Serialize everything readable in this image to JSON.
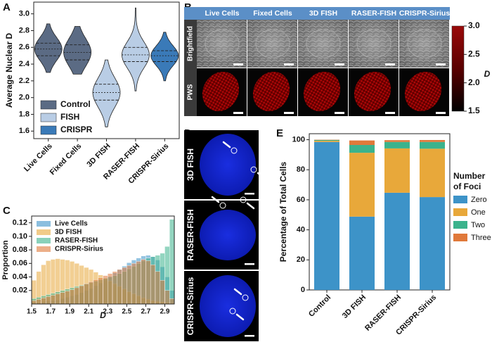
{
  "panel_labels": [
    "A",
    "B",
    "C",
    "D",
    "E"
  ],
  "panel_b": {
    "columns": [
      "Live Cells",
      "Fixed Cells",
      "3D FISH",
      "RASER-FISH",
      "CRISPR-Sirius"
    ],
    "rows": [
      "Brightfield",
      "PWS"
    ],
    "colorbar": {
      "label": "D",
      "lim": [
        1.5,
        3.0
      ],
      "ticks": [
        1.5,
        {
          "value": 2,
          "label": "2.0"
        },
        2.5,
        {
          "value": 3,
          "label": "3.0"
        }
      ]
    }
  },
  "panel_d": {
    "rows": [
      "3D FISH",
      "RASER-FISH",
      "CRISPR-Sirius"
    ]
  },
  "chart_data": [
    {
      "type": "violin",
      "ylabel": "Average Nuclear D",
      "categories": [
        "Live Cells",
        "Fixed Cells",
        "3D FISH",
        "RASER-FISH",
        "CRISPR-Sirius"
      ],
      "colors": [
        "#5b6b84",
        "#5b6b84",
        "#b9cde5",
        "#b9cde5",
        "#3a7ab8"
      ],
      "min": [
        2.3,
        2.28,
        1.65,
        2.08,
        2.2
      ],
      "q1": [
        2.5,
        2.45,
        1.97,
        2.43,
        2.43
      ],
      "median": [
        2.58,
        2.54,
        2.06,
        2.51,
        2.5
      ],
      "q3": [
        2.65,
        2.63,
        2.16,
        2.6,
        2.56
      ],
      "max": [
        2.88,
        2.85,
        2.45,
        3.07,
        2.78
      ],
      "ylim": [
        1.51,
        3.14
      ],
      "yticks": [
        1.6,
        1.8,
        {
          "value": 2,
          "label": "2.0"
        },
        2.2,
        2.4,
        2.6,
        2.8,
        {
          "value": 3,
          "label": "3.0"
        }
      ],
      "legend": [
        {
          "name": "Control",
          "color": "#5b6b84"
        },
        {
          "name": "FISH",
          "color": "#b9cde5"
        },
        {
          "name": "CRISPR",
          "color": "#3a7ab8"
        }
      ],
      "legend_position": "lower left"
    },
    {
      "type": "histogram",
      "xlabel": "D",
      "ylabel": "Proportion",
      "bins": [
        1.5,
        1.55,
        1.6,
        1.65,
        1.7,
        1.75,
        1.8,
        1.85,
        1.9,
        1.95,
        2.0,
        2.05,
        2.1,
        2.15,
        2.2,
        2.25,
        2.3,
        2.35,
        2.4,
        2.45,
        2.5,
        2.55,
        2.6,
        2.65,
        2.7,
        2.75,
        2.8,
        2.85,
        2.9,
        2.95,
        3.0
      ],
      "series": [
        {
          "name": "Live Cells",
          "color": "#3d93c8",
          "values": [
            0.001,
            0.002,
            0.003,
            0.004,
            0.005,
            0.006,
            0.008,
            0.01,
            0.012,
            0.014,
            0.017,
            0.02,
            0.023,
            0.027,
            0.031,
            0.036,
            0.041,
            0.046,
            0.051,
            0.056,
            0.061,
            0.065,
            0.068,
            0.071,
            0.072,
            0.07,
            0.065,
            0.055,
            0.04,
            0.02
          ]
        },
        {
          "name": "3D FISH",
          "color": "#e8a83a",
          "values": [
            0.035,
            0.048,
            0.058,
            0.064,
            0.066,
            0.067,
            0.066,
            0.065,
            0.063,
            0.06,
            0.057,
            0.054,
            0.051,
            0.047,
            0.043,
            0.038,
            0.034,
            0.03,
            0.026,
            0.022,
            0.018,
            0.015,
            0.012,
            0.009,
            0.007,
            0.005,
            0.004,
            0.003,
            0.002,
            0.001
          ]
        },
        {
          "name": "RASER-FISH",
          "color": "#3bb38c",
          "values": [
            0.008,
            0.01,
            0.012,
            0.014,
            0.016,
            0.018,
            0.02,
            0.022,
            0.024,
            0.026,
            0.028,
            0.03,
            0.032,
            0.034,
            0.036,
            0.038,
            0.04,
            0.042,
            0.045,
            0.048,
            0.052,
            0.056,
            0.06,
            0.064,
            0.068,
            0.07,
            0.072,
            0.075,
            0.085,
            0.125
          ]
        },
        {
          "name": "CRISPR-Sirius",
          "color": "#e0793a",
          "values": [
            0.005,
            0.007,
            0.009,
            0.011,
            0.013,
            0.015,
            0.017,
            0.019,
            0.021,
            0.024,
            0.027,
            0.03,
            0.033,
            0.036,
            0.039,
            0.042,
            0.045,
            0.048,
            0.051,
            0.054,
            0.057,
            0.06,
            0.063,
            0.066,
            0.064,
            0.058,
            0.048,
            0.035,
            0.02,
            0.008
          ]
        }
      ],
      "xlim": [
        1.5,
        3.0
      ],
      "xticks": [
        1.5,
        1.7,
        1.9,
        2.1,
        2.3,
        2.5,
        2.7,
        2.9
      ],
      "ylim": [
        0,
        0.13
      ],
      "yticks": [
        0.02,
        0.04,
        0.06,
        0.08,
        {
          "value": 0.1,
          "label": "0.10"
        },
        0.12
      ],
      "legend_position": "upper left"
    },
    {
      "type": "stacked_bar",
      "ylabel": "Percentage of Total Cells",
      "legend_title": [
        "Number",
        "of Foci"
      ],
      "categories": [
        "Control",
        "3D FISH",
        "RASER-FISH",
        "CRISPR-Sirius"
      ],
      "series": [
        {
          "name": "Zero",
          "color": "#3d93c8",
          "values": [
            98.5,
            48.8,
            64.7,
            61.8
          ]
        },
        {
          "name": "One",
          "color": "#e8a83a",
          "values": [
            0.8,
            42.5,
            29.5,
            32.2
          ]
        },
        {
          "name": "Two",
          "color": "#3bb38c",
          "values": [
            0.5,
            5.2,
            4.3,
            4.5
          ]
        },
        {
          "name": "Three",
          "color": "#e0793a",
          "values": [
            0.2,
            3.0,
            1.2,
            1.3
          ]
        }
      ],
      "ylim": [
        0,
        104
      ],
      "yticks": [
        0,
        20,
        40,
        60,
        80,
        100
      ],
      "legend_position": "right"
    }
  ]
}
